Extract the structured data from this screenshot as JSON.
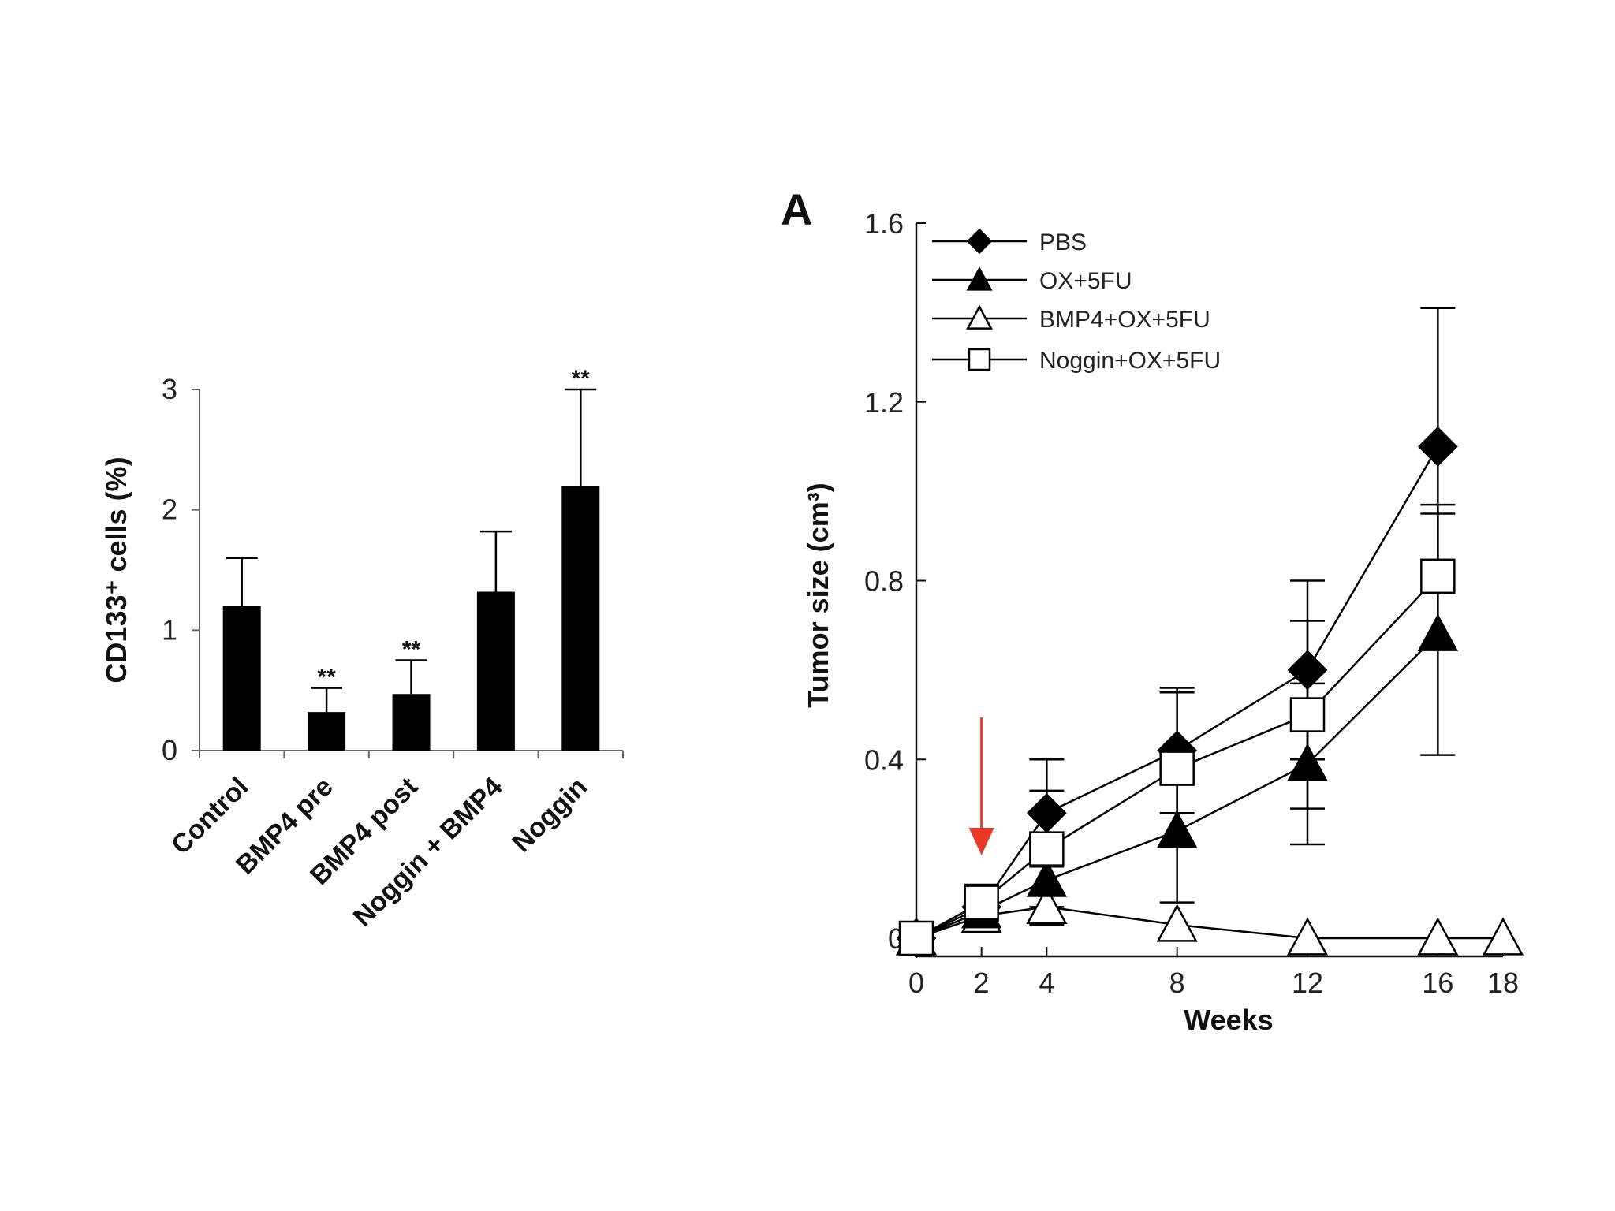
{
  "chart_data": [
    {
      "type": "bar",
      "ylabel": "CD133⁺ cells (%)",
      "ylim": [
        0,
        3
      ],
      "yticks": [
        "0",
        "1",
        "2",
        "3"
      ],
      "categories": [
        "Control",
        "BMP4 pre",
        "BMP4 post",
        "Noggin + BMP4",
        "Noggin"
      ],
      "values": [
        1.2,
        0.32,
        0.47,
        1.32,
        2.2
      ],
      "errors": [
        0.4,
        0.2,
        0.28,
        0.5,
        0.8
      ],
      "annotations": [
        "",
        "**",
        "**",
        "",
        "**"
      ],
      "bar_color": "#000000"
    },
    {
      "type": "line",
      "panel_label": "A",
      "xlabel": "Weeks",
      "ylabel": "Tumor size (cm³)",
      "xlim": [
        0,
        18
      ],
      "ylim": [
        0,
        1.6
      ],
      "xticks": [
        "0",
        "2",
        "4",
        "8",
        "12",
        "16",
        "18"
      ],
      "yticks": [
        "0",
        "0.4",
        "0.8",
        "1.2",
        "1.6"
      ],
      "arrow_at_week": 2,
      "arrow_color": "#e8392a",
      "series": [
        {
          "name": "PBS",
          "marker": "diamond-filled",
          "x": [
            0,
            2,
            4,
            8,
            12,
            16
          ],
          "y": [
            0,
            0.07,
            0.28,
            0.42,
            0.6,
            1.1
          ],
          "err": [
            0,
            0.03,
            0.12,
            0.14,
            0.2,
            0.31
          ]
        },
        {
          "name": "OX+5FU",
          "marker": "triangle-filled",
          "x": [
            0,
            2,
            4,
            8,
            12,
            16
          ],
          "y": [
            0,
            0.06,
            0.13,
            0.24,
            0.39,
            0.68
          ],
          "err": [
            0,
            0.02,
            0.1,
            0.16,
            0.18,
            0.27
          ]
        },
        {
          "name": "BMP4+OX+5FU",
          "marker": "triangle-open",
          "x": [
            0,
            2,
            4,
            8,
            12,
            16,
            18
          ],
          "y": [
            0,
            0.05,
            0.07,
            0.03,
            0,
            0,
            0
          ],
          "err": [
            0,
            0,
            0,
            0,
            0,
            0,
            0
          ]
        },
        {
          "name": "Noggin+OX+5FU",
          "marker": "square-open",
          "x": [
            0,
            2,
            4,
            8,
            12,
            16
          ],
          "y": [
            0,
            0.08,
            0.2,
            0.38,
            0.5,
            0.81
          ],
          "err": [
            0,
            0.04,
            0.13,
            0.17,
            0.21,
            0.16
          ]
        }
      ]
    }
  ]
}
